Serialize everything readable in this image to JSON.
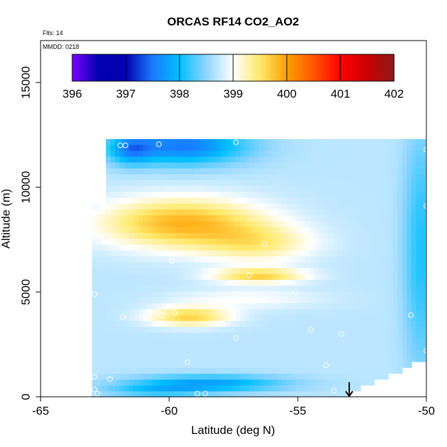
{
  "chart_data": {
    "type": "heatmap",
    "title": "ORCAS RF14 CO2_AO2",
    "annotations": {
      "flights": "Flts: 14",
      "date": "MMDD: 0218"
    },
    "xlabel": "Latitude (deg N)",
    "ylabel": "Altitude (m)",
    "xlim": [
      -65,
      -50
    ],
    "ylim": [
      0,
      17000
    ],
    "x_ticks": [
      -65,
      -60,
      -55,
      -50
    ],
    "x_tick_labels": [
      "-65",
      "-60",
      "-55",
      "-50"
    ],
    "y_ticks": [
      0,
      5000,
      10000,
      15000
    ],
    "y_tick_labels": [
      "0",
      "5000",
      "10000",
      "15000"
    ],
    "colorbar": {
      "range": [
        396,
        402
      ],
      "ticks": [
        396,
        397,
        398,
        399,
        400,
        401,
        402
      ],
      "tick_labels": [
        "396",
        "397",
        "398",
        "399",
        "400",
        "401",
        "402"
      ],
      "legend_placement": "top inside plot",
      "stops": [
        {
          "value": 396.0,
          "color": "#7a00ff"
        },
        {
          "value": 396.5,
          "color": "#0000b0"
        },
        {
          "value": 397.0,
          "color": "#0000b0"
        },
        {
          "value": 397.5,
          "color": "#1a7aff"
        },
        {
          "value": 398.0,
          "color": "#00bfff"
        },
        {
          "value": 398.5,
          "color": "#8fd6ff"
        },
        {
          "value": 399.0,
          "color": "#ffffff"
        },
        {
          "value": 399.5,
          "color": "#ffe96a"
        },
        {
          "value": 400.0,
          "color": "#ffa000"
        },
        {
          "value": 400.5,
          "color": "#ff5500"
        },
        {
          "value": 401.0,
          "color": "#ff0000"
        },
        {
          "value": 401.5,
          "color": "#cc0000"
        },
        {
          "value": 402.0,
          "color": "#8b1a1a"
        }
      ]
    },
    "field": {
      "lat_min": -63.0,
      "lat_max": -50.0,
      "alt_min": 0,
      "alt_max": 12300,
      "background_co2": 398.7,
      "features": [
        {
          "name": "upper blue cap",
          "lat": -59.5,
          "alt": 12000,
          "lat_width": 2.5,
          "alt_width": 900,
          "amplitude": -1.2
        },
        {
          "name": "upper blue cap west",
          "lat": -61.5,
          "alt": 11800,
          "lat_width": 0.8,
          "alt_width": 700,
          "amplitude": -0.7
        },
        {
          "name": "northern blue edge",
          "lat": -50.2,
          "alt": 7000,
          "lat_width": 0.7,
          "alt_width": 6000,
          "amplitude": -0.6
        },
        {
          "name": "upper yellow tongue",
          "lat": -59.5,
          "alt": 8300,
          "lat_width": 3.2,
          "alt_width": 1200,
          "amplitude": 1.15
        },
        {
          "name": "upper tongue tail",
          "lat": -56.5,
          "alt": 7300,
          "lat_width": 2.2,
          "alt_width": 900,
          "amplitude": 0.6
        },
        {
          "name": "mid yellow band",
          "lat": -56.5,
          "alt": 5800,
          "lat_width": 1.8,
          "alt_width": 350,
          "amplitude": 0.95
        },
        {
          "name": "lower yellow lens",
          "lat": -59.2,
          "alt": 3850,
          "lat_width": 1.6,
          "alt_width": 450,
          "amplitude": 0.95
        },
        {
          "name": "mid light band",
          "lat": -57.0,
          "alt": 4700,
          "lat_width": 3.0,
          "alt_width": 500,
          "amplitude": 0.3
        },
        {
          "name": "near-surface blue layer",
          "lat": -58.5,
          "alt": 650,
          "lat_width": 3.0,
          "alt_width": 400,
          "amplitude": -0.9
        },
        {
          "name": "lowest blue slab",
          "lat": -60.5,
          "alt": 300,
          "lat_width": 2.0,
          "alt_width": 300,
          "amplitude": -0.5
        }
      ],
      "cutouts": [
        {
          "name": "western upper gap",
          "lat_max": -62.5,
          "alt_min": 9100
        },
        {
          "name": "north-west upper gap",
          "lat_max": -62.2,
          "alt_min": 12300
        }
      ]
    },
    "sample_points": [
      {
        "lat": -61.9,
        "alt": 12000
      },
      {
        "lat": -61.7,
        "alt": 12000
      },
      {
        "lat": -60.4,
        "alt": 12050
      },
      {
        "lat": -57.4,
        "alt": 12150
      },
      {
        "lat": -50.1,
        "alt": 12450
      },
      {
        "lat": -50.0,
        "alt": 11800
      },
      {
        "lat": -50.0,
        "alt": 9100
      },
      {
        "lat": -62.6,
        "alt": 8850
      },
      {
        "lat": -56.3,
        "alt": 7300
      },
      {
        "lat": -59.9,
        "alt": 6500
      },
      {
        "lat": -56.9,
        "alt": 5800
      },
      {
        "lat": -55.1,
        "alt": 5000
      },
      {
        "lat": -62.9,
        "alt": 4900
      },
      {
        "lat": -61.8,
        "alt": 3800
      },
      {
        "lat": -60.3,
        "alt": 3900
      },
      {
        "lat": -59.8,
        "alt": 4000
      },
      {
        "lat": -50.6,
        "alt": 3900
      },
      {
        "lat": -54.5,
        "alt": 3200
      },
      {
        "lat": -53.3,
        "alt": 3000
      },
      {
        "lat": -57.4,
        "alt": 2800
      },
      {
        "lat": -50.0,
        "alt": 2200
      },
      {
        "lat": -59.3,
        "alt": 1650
      },
      {
        "lat": -53.9,
        "alt": 1500
      },
      {
        "lat": -62.9,
        "alt": 950
      },
      {
        "lat": -62.3,
        "alt": 850
      },
      {
        "lat": -62.9,
        "alt": 350
      },
      {
        "lat": -62.8,
        "alt": 150
      },
      {
        "lat": -58.9,
        "alt": 150
      },
      {
        "lat": -58.6,
        "alt": 150
      },
      {
        "lat": -53.6,
        "alt": 300
      }
    ],
    "marker": {
      "type": "down-arrow",
      "lat": -53.0,
      "alt_top": 700,
      "alt_bottom": 0
    }
  }
}
